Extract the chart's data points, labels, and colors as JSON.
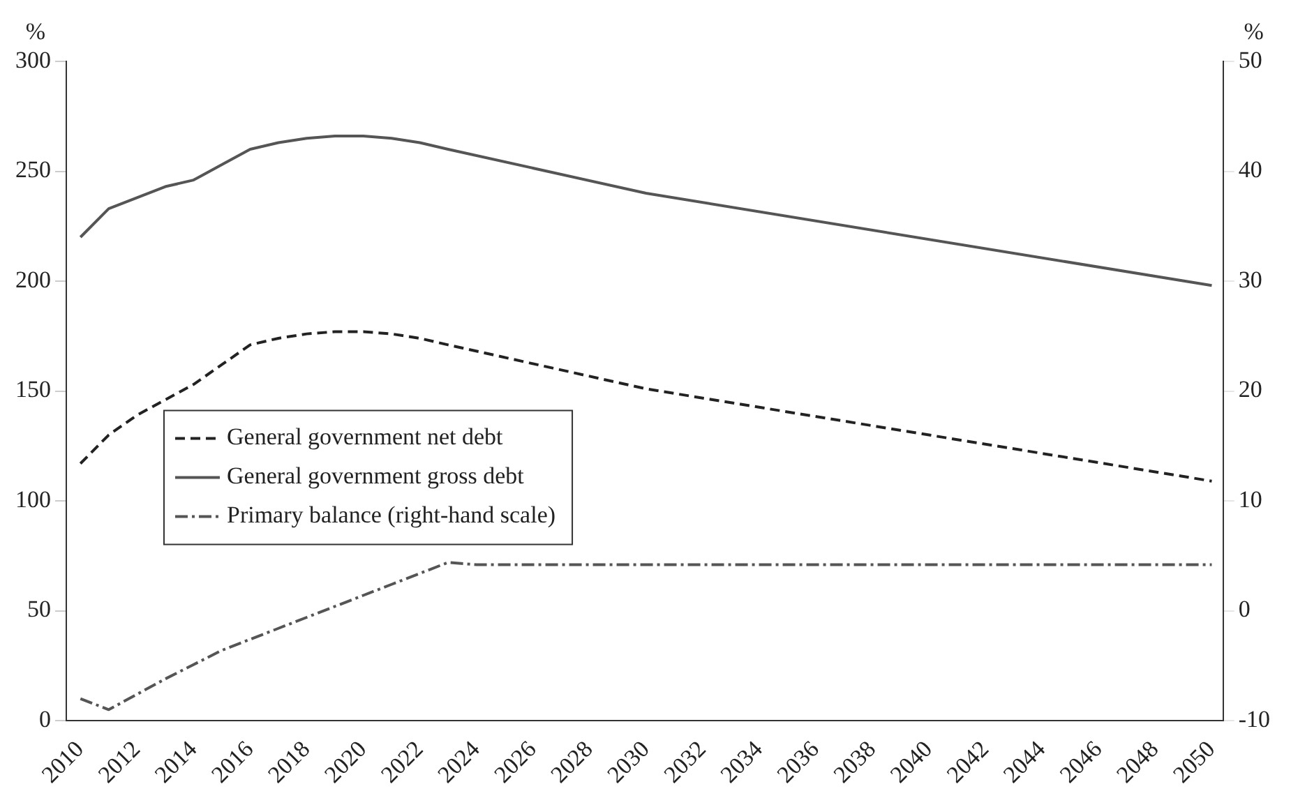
{
  "chart_data": {
    "type": "line",
    "ylabel": "%",
    "y2label": "%",
    "legend": "center left",
    "grid": false,
    "marker": "none",
    "xlim": [
      2009.5,
      2050.4
    ],
    "xticks": [
      2010,
      2012,
      2014,
      2016,
      2018,
      2020,
      2022,
      2024,
      2026,
      2028,
      2030,
      2032,
      2034,
      2036,
      2038,
      2040,
      2042,
      2044,
      2046,
      2048,
      2050
    ],
    "ylim": [
      0,
      300
    ],
    "yticks": [
      0,
      50,
      100,
      150,
      200,
      250,
      300
    ],
    "y2lim": [
      -10,
      50
    ],
    "y2ticks": [
      -10,
      0,
      10,
      20,
      30,
      40,
      50
    ],
    "series": [
      {
        "name": "General government net debt",
        "color": "#222222",
        "line_style": "dashed",
        "x": [
          2010,
          2011,
          2012,
          2013,
          2014,
          2015,
          2016,
          2017,
          2018,
          2019,
          2020,
          2021,
          2022,
          2023,
          2030,
          2050
        ],
        "values": [
          117,
          130,
          139,
          146,
          153,
          162,
          171,
          174,
          176,
          177,
          177,
          176,
          174,
          171,
          151,
          109
        ]
      },
      {
        "name": "General government gross debt",
        "color": "#555555",
        "line_style": "solid",
        "x": [
          2010,
          2011,
          2012,
          2013,
          2014,
          2015,
          2016,
          2017,
          2018,
          2019,
          2020,
          2021,
          2022,
          2023,
          2030,
          2050
        ],
        "values": [
          220,
          233,
          238,
          243,
          246,
          253,
          260,
          263,
          265,
          266,
          266,
          265,
          263,
          260,
          240,
          198
        ]
      },
      {
        "name": "Primary balance (right-hand scale)",
        "color": "#555555",
        "line_style": "dashdot",
        "axis": "y2",
        "x": [
          2010,
          2011,
          2012,
          2013,
          2014,
          2015,
          2016,
          2017,
          2018,
          2019,
          2020,
          2021,
          2022,
          2023,
          2024,
          2050
        ],
        "values": [
          -8,
          -9,
          -7.6,
          -6.2,
          -4.9,
          -3.6,
          -2.6,
          -1.6,
          -0.6,
          0.4,
          1.4,
          2.4,
          3.4,
          4.4,
          4.2,
          4.2
        ]
      }
    ]
  }
}
